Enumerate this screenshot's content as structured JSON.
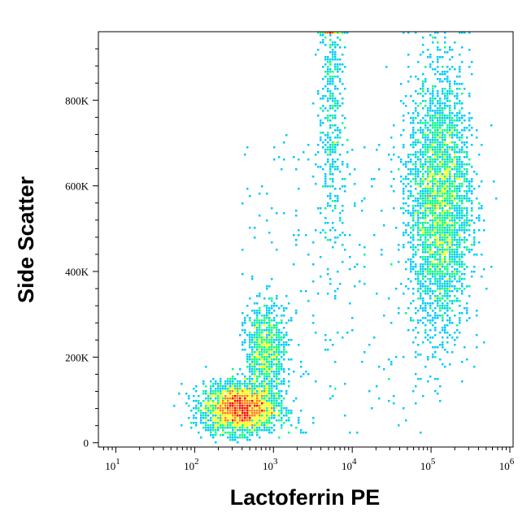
{
  "chart_data": {
    "type": "scatter",
    "subtype": "flow-cytometry-density-dot-plot",
    "xlabel": "Lactoferrin PE",
    "ylabel": "Side Scatter",
    "x_scale": "log",
    "y_scale": "linear",
    "xlim": [
      6,
      1100000
    ],
    "ylim": [
      -10000,
      960000
    ],
    "x_ticks": [
      {
        "value": 10,
        "base": "10",
        "exp": "1"
      },
      {
        "value": 100,
        "base": "10",
        "exp": "2"
      },
      {
        "value": 1000,
        "base": "10",
        "exp": "3"
      },
      {
        "value": 10000,
        "base": "10",
        "exp": "4"
      },
      {
        "value": 100000,
        "base": "10",
        "exp": "5"
      },
      {
        "value": 1000000,
        "base": "10",
        "exp": "6"
      }
    ],
    "y_ticks": [
      {
        "value": 0,
        "label": "0"
      },
      {
        "value": 200000,
        "label": "200K"
      },
      {
        "value": 400000,
        "label": "400K"
      },
      {
        "value": 600000,
        "label": "600K"
      },
      {
        "value": 800000,
        "label": "800K"
      }
    ],
    "populations": [
      {
        "center_x": 380,
        "center_y": 80000,
        "spread_log_x": 0.16,
        "spread_y": 22000,
        "density": "high"
      },
      {
        "center_x": 800,
        "center_y": 210000,
        "spread_log_x": 0.09,
        "spread_y": 45000,
        "density": "medium"
      },
      {
        "center_x": 5500,
        "center_y": 780000,
        "spread_log_x": 0.06,
        "spread_y": 130000,
        "density": "low"
      },
      {
        "center_x": 130000,
        "center_y": 560000,
        "spread_log_x": 0.14,
        "spread_y": 120000,
        "density": "high"
      }
    ],
    "colormap": [
      "#0000ff",
      "#00c8ff",
      "#00ff80",
      "#ffff00",
      "#ff8000",
      "#ff0000"
    ],
    "grid": false,
    "legend": "none"
  }
}
